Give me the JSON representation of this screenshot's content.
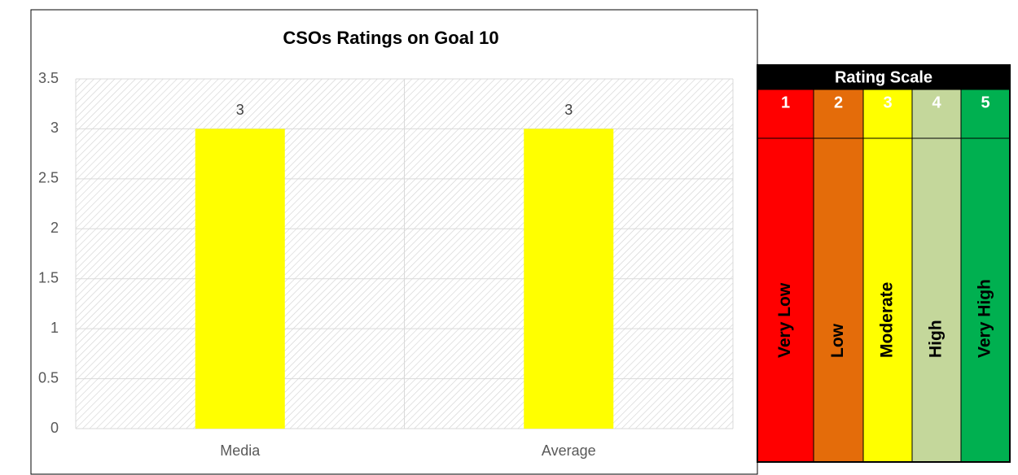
{
  "chart_data": {
    "type": "bar",
    "title": "CSOs Ratings on Goal 10",
    "categories": [
      "Media",
      "Average"
    ],
    "values": [
      3,
      3
    ],
    "color": "#ffff00",
    "ylim": [
      0,
      3.5
    ],
    "yticks": [
      0,
      0.5,
      1,
      1.5,
      2,
      2.5,
      3,
      3.5
    ],
    "grid": true
  },
  "rating_scale": {
    "title": "Rating Scale",
    "levels": [
      {
        "number": 1,
        "label": "Very Low",
        "color": "#ff0000"
      },
      {
        "number": 2,
        "label": "Low",
        "color": "#e46c0a"
      },
      {
        "number": 3,
        "label": "Moderate",
        "color": "#ffff00"
      },
      {
        "number": 4,
        "label": "High",
        "color": "#c4d79b"
      },
      {
        "number": 5,
        "label": "Very High",
        "color": "#00b050"
      }
    ]
  }
}
